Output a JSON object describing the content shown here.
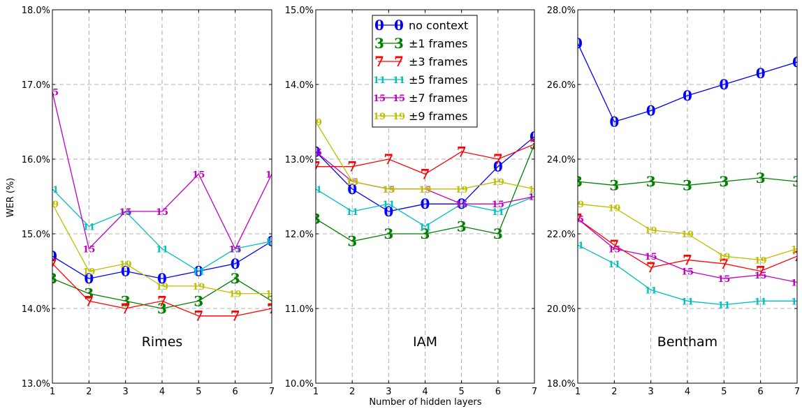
{
  "chart_data": {
    "type": "line",
    "xlabel": "Number of hidden layers",
    "ylabel": "WER (%)",
    "x": [
      1,
      2,
      3,
      4,
      5,
      6,
      7
    ],
    "xticks": [
      "1",
      "2",
      "3",
      "4",
      "5",
      "6",
      "7"
    ],
    "legend": {
      "placement": "top (middle panel)",
      "entries": [
        {
          "marker": "0",
          "label": "no context"
        },
        {
          "marker": "3",
          "label": "±1 frames"
        },
        {
          "marker": "7",
          "label": "±3 frames"
        },
        {
          "marker": "11",
          "label": "±5 frames"
        },
        {
          "marker": "15",
          "label": "±7 frames"
        },
        {
          "marker": "19",
          "label": "±9 frames"
        }
      ]
    },
    "series_style": [
      {
        "marker": "0",
        "color": "#0000ff"
      },
      {
        "marker": "3",
        "color": "#007f00"
      },
      {
        "marker": "7",
        "color": "#ff0000"
      },
      {
        "marker": "11",
        "color": "#00bfbf"
      },
      {
        "marker": "15",
        "color": "#bf00bf"
      },
      {
        "marker": "19",
        "color": "#bfbf00"
      }
    ],
    "grid": true,
    "panels": [
      {
        "title": "Rimes",
        "ylim": [
          13.0,
          18.0
        ],
        "yticks": [
          "13.0%",
          "14.0%",
          "15.0%",
          "16.0%",
          "17.0%",
          "18.0%"
        ],
        "series": [
          {
            "values": [
              14.7,
              14.4,
              14.5,
              14.4,
              14.5,
              14.6,
              14.9
            ]
          },
          {
            "values": [
              14.4,
              14.2,
              14.1,
              14.0,
              14.1,
              14.4,
              14.1
            ]
          },
          {
            "values": [
              14.6,
              14.1,
              14.0,
              14.1,
              13.9,
              13.9,
              14.0
            ]
          },
          {
            "values": [
              15.6,
              15.1,
              15.3,
              14.8,
              14.5,
              14.8,
              14.9
            ]
          },
          {
            "values": [
              16.9,
              14.8,
              15.3,
              15.3,
              15.8,
              14.8,
              15.8
            ]
          },
          {
            "values": [
              15.4,
              14.5,
              14.6,
              14.3,
              14.3,
              14.2,
              14.2
            ]
          }
        ]
      },
      {
        "title": "IAM",
        "ylim": [
          10.0,
          15.0
        ],
        "yticks": [
          "10.0%",
          "11.0%",
          "12.0%",
          "13.0%",
          "14.0%",
          "15.0%"
        ],
        "series": [
          {
            "values": [
              13.1,
              12.6,
              12.3,
              12.4,
              12.4,
              12.9,
              13.3
            ]
          },
          {
            "values": [
              12.2,
              11.9,
              12.0,
              12.0,
              12.1,
              12.0,
              13.2
            ]
          },
          {
            "values": [
              12.9,
              12.9,
              13.0,
              12.8,
              13.1,
              13.0,
              13.2
            ]
          },
          {
            "values": [
              12.6,
              12.3,
              12.4,
              12.1,
              12.4,
              12.3,
              12.5
            ]
          },
          {
            "values": [
              13.1,
              12.7,
              12.6,
              12.6,
              12.4,
              12.4,
              12.5
            ]
          },
          {
            "values": [
              13.5,
              12.7,
              12.6,
              12.6,
              12.6,
              12.7,
              12.6
            ]
          }
        ]
      },
      {
        "title": "Bentham",
        "ylim": [
          18.0,
          28.0
        ],
        "yticks": [
          "18.0%",
          "20.0%",
          "22.0%",
          "24.0%",
          "26.0%",
          "28.0%"
        ],
        "series": [
          {
            "values": [
              27.1,
              25.0,
              25.3,
              25.7,
              26.0,
              26.3,
              26.6
            ]
          },
          {
            "values": [
              23.4,
              23.3,
              23.4,
              23.3,
              23.4,
              23.5,
              23.4
            ]
          },
          {
            "values": [
              22.4,
              21.7,
              21.1,
              21.3,
              21.2,
              21.0,
              21.4
            ]
          },
          {
            "values": [
              21.7,
              21.2,
              20.5,
              20.2,
              20.1,
              20.2,
              20.2
            ]
          },
          {
            "values": [
              22.4,
              21.6,
              21.4,
              21.0,
              20.8,
              20.9,
              20.7
            ]
          },
          {
            "values": [
              22.8,
              22.7,
              22.1,
              22.0,
              21.4,
              21.3,
              21.6
            ]
          }
        ]
      }
    ]
  }
}
